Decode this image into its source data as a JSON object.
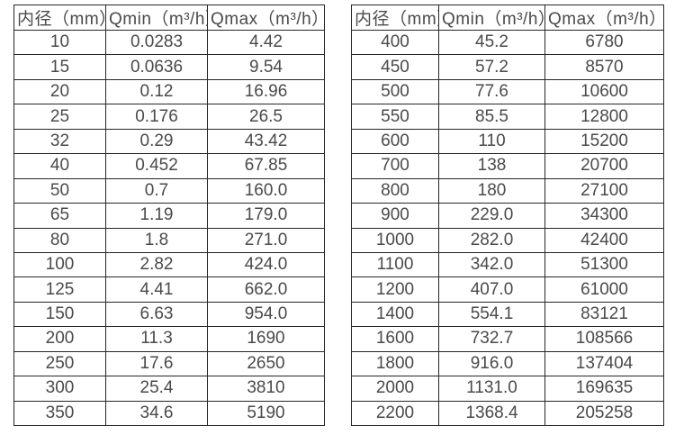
{
  "page": {
    "background_color": "#ffffff",
    "text_color": "#4a4a4a",
    "border_color": "#262626"
  },
  "tables": {
    "left": {
      "headers": [
        "内径（mm）",
        "Qmin（m³/h）",
        "Qmax（m³/h）"
      ],
      "rows": [
        [
          "10",
          "0.0283",
          "4.42"
        ],
        [
          "15",
          "0.0636",
          "9.54"
        ],
        [
          "20",
          "0.12",
          "16.96"
        ],
        [
          "25",
          "0.176",
          "26.5"
        ],
        [
          "32",
          "0.29",
          "43.42"
        ],
        [
          "40",
          "0.452",
          "67.85"
        ],
        [
          "50",
          "0.7",
          "160.0"
        ],
        [
          "65",
          "1.19",
          "179.0"
        ],
        [
          "80",
          "1.8",
          "271.0"
        ],
        [
          "100",
          "2.82",
          "424.0"
        ],
        [
          "125",
          "4.41",
          "662.0"
        ],
        [
          "150",
          "6.63",
          "954.0"
        ],
        [
          "200",
          "11.3",
          "1690"
        ],
        [
          "250",
          "17.6",
          "2650"
        ],
        [
          "300",
          "25.4",
          "3810"
        ],
        [
          "350",
          "34.6",
          "5190"
        ]
      ]
    },
    "right": {
      "headers": [
        "内径（mm）",
        "Qmin（m³/h）",
        "Qmax（m³/h）"
      ],
      "rows": [
        [
          "400",
          "45.2",
          "6780"
        ],
        [
          "450",
          "57.2",
          "8570"
        ],
        [
          "500",
          "77.6",
          "10600"
        ],
        [
          "550",
          "85.5",
          "12800"
        ],
        [
          "600",
          "110",
          "15200"
        ],
        [
          "700",
          "138",
          "20700"
        ],
        [
          "800",
          "180",
          "27100"
        ],
        [
          "900",
          "229.0",
          "34300"
        ],
        [
          "1000",
          "282.0",
          "42400"
        ],
        [
          "1100",
          "342.0",
          "51300"
        ],
        [
          "1200",
          "407.0",
          "61000"
        ],
        [
          "1400",
          "554.1",
          "83121"
        ],
        [
          "1600",
          "732.7",
          "108566"
        ],
        [
          "1800",
          "916.0",
          "137404"
        ],
        [
          "2000",
          "1131.0",
          "169635"
        ],
        [
          "2200",
          "1368.4",
          "205258"
        ]
      ]
    }
  }
}
